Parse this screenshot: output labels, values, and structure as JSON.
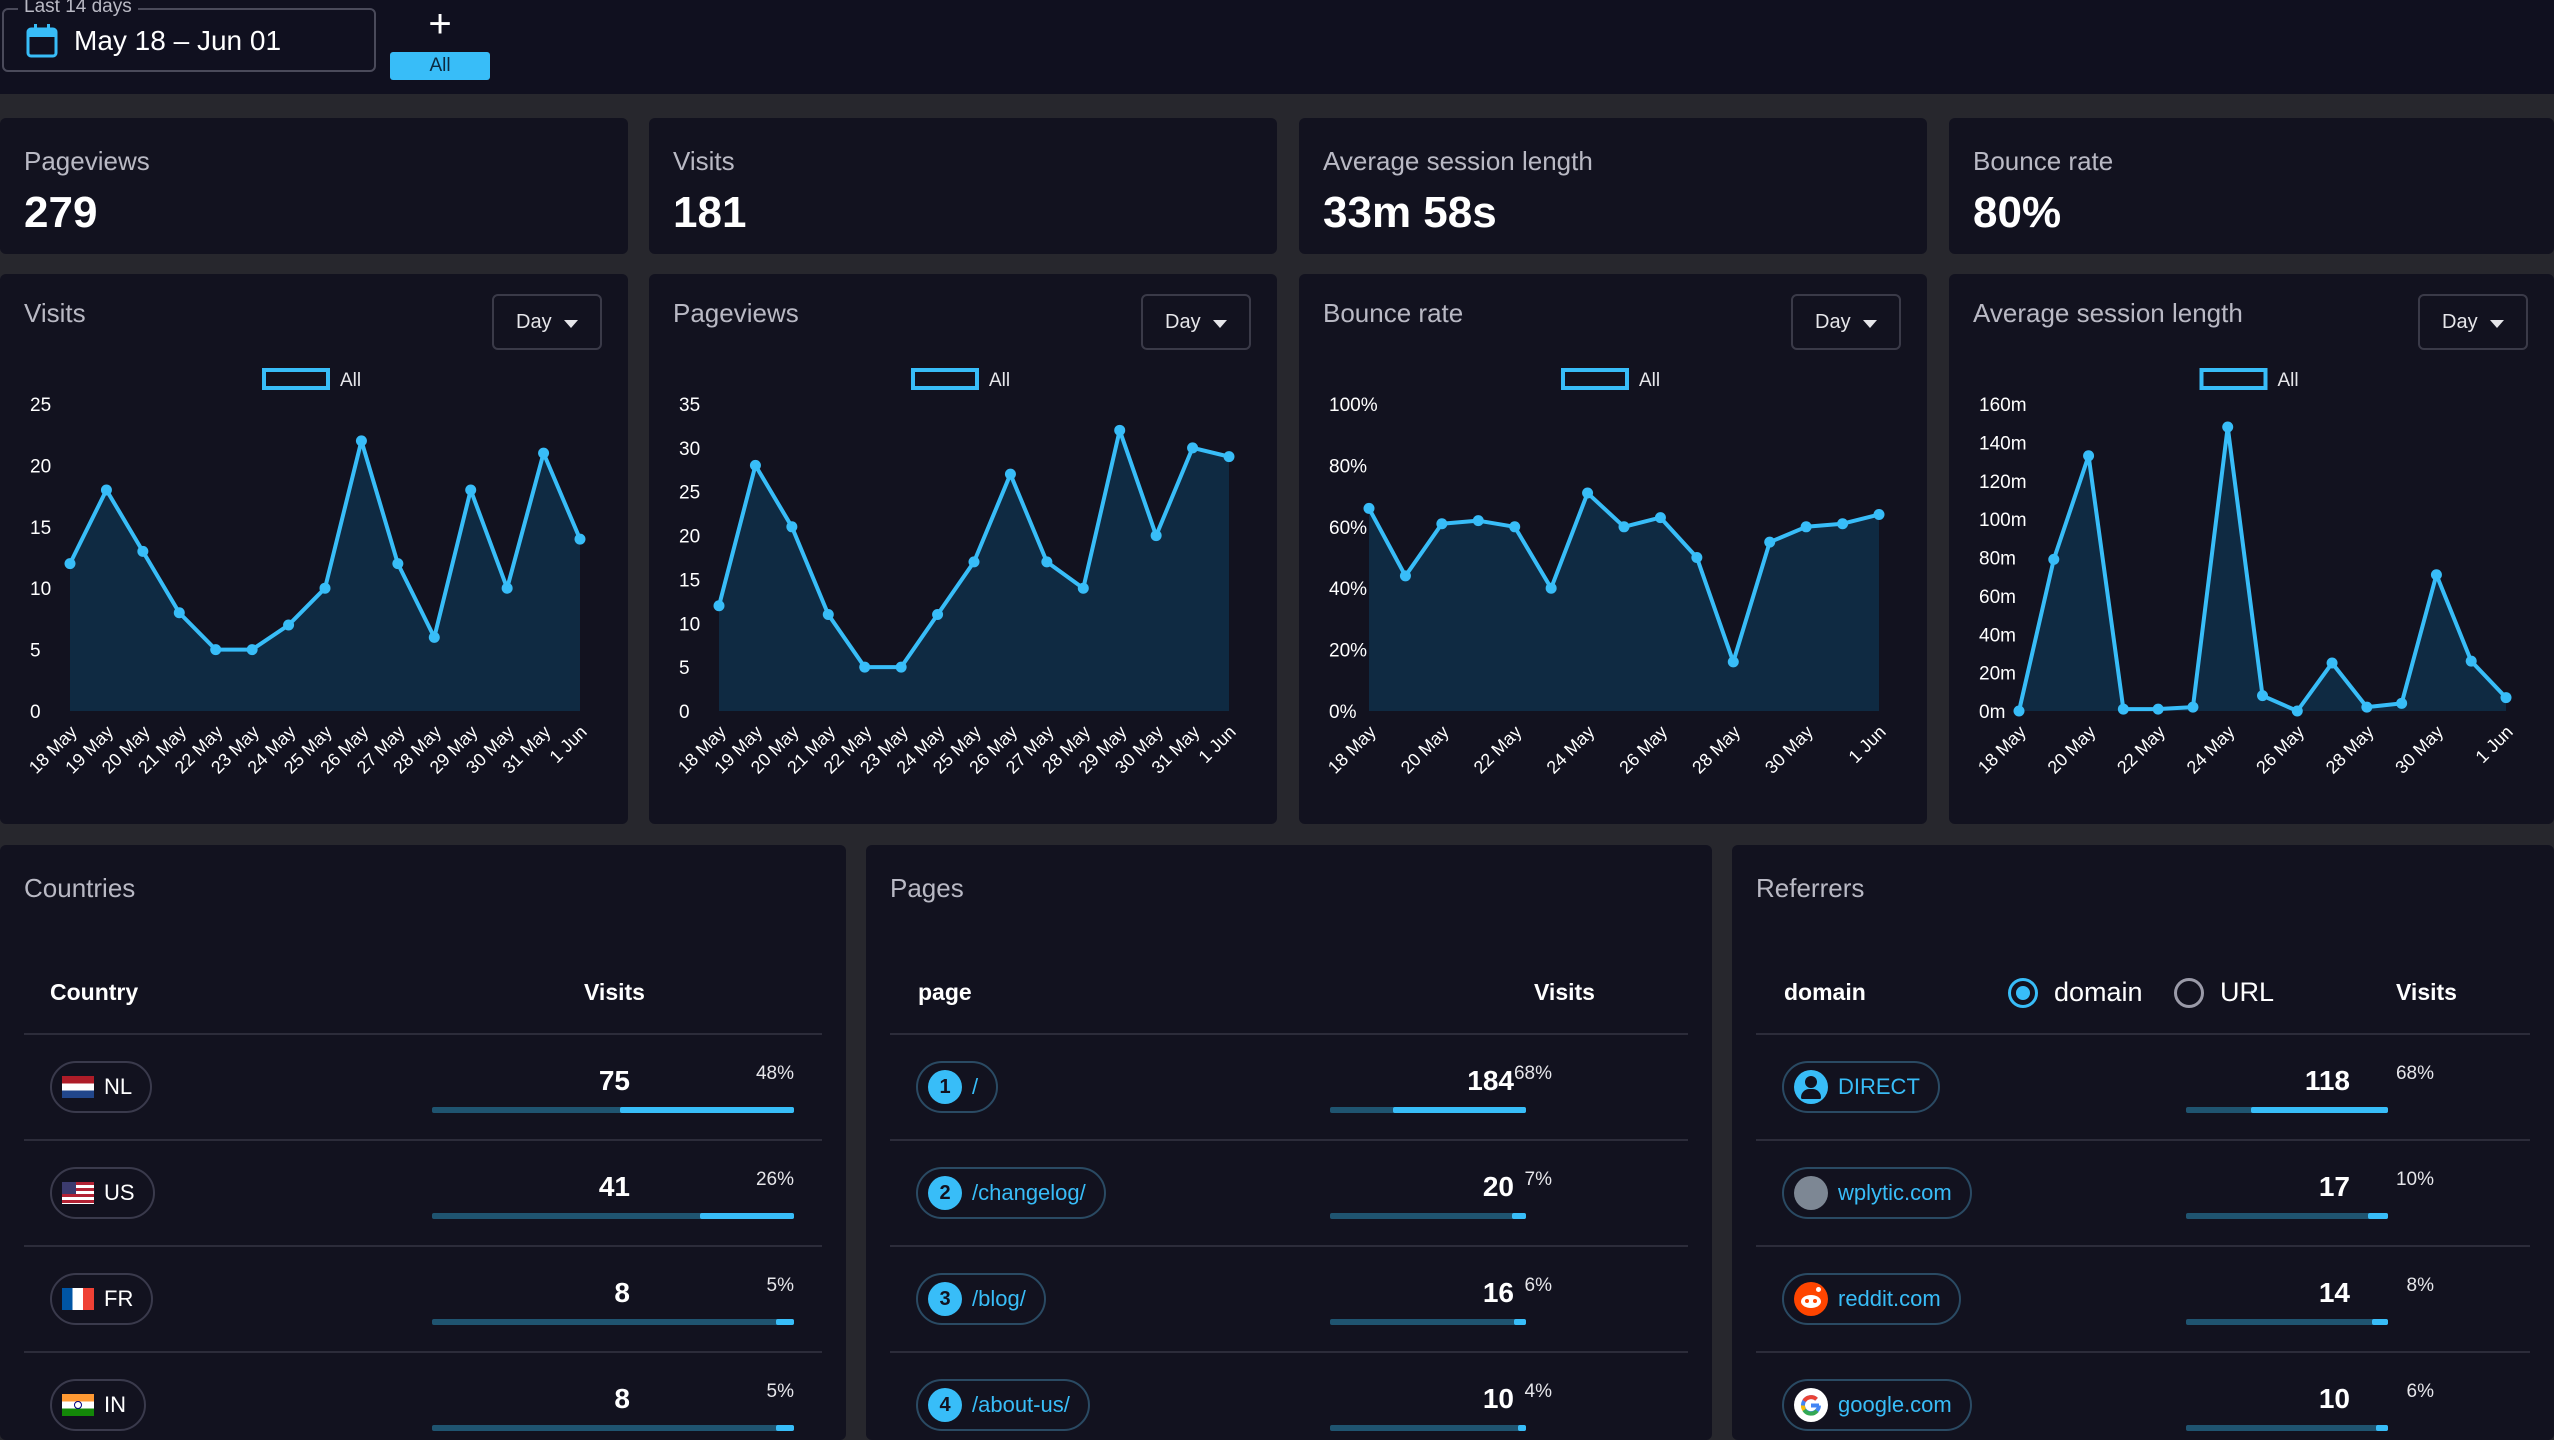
{
  "header": {
    "range_label": "Last 14 days",
    "date_range": "May 18 – Jun 01",
    "add_label": "+",
    "filter_chip": "All"
  },
  "stats": [
    {
      "label": "Pageviews",
      "value": "279"
    },
    {
      "label": "Visits",
      "value": "181"
    },
    {
      "label": "Average session length",
      "value": "33m 58s"
    },
    {
      "label": "Bounce rate",
      "value": "80%"
    }
  ],
  "charts": [
    {
      "title": "Visits",
      "interval": "Day",
      "legend": "All",
      "yticks": [
        "0",
        "5",
        "10",
        "15",
        "20",
        "25"
      ],
      "xlabels": [
        "18 May",
        "19 May",
        "20 May",
        "21 May",
        "22 May",
        "23 May",
        "24 May",
        "25 May",
        "26 May",
        "27 May",
        "28 May",
        "29 May",
        "30 May",
        "31 May",
        "1 Jun"
      ]
    },
    {
      "title": "Pageviews",
      "interval": "Day",
      "legend": "All",
      "yticks": [
        "0",
        "5",
        "10",
        "15",
        "20",
        "25",
        "30",
        "35"
      ],
      "xlabels": [
        "18 May",
        "19 May",
        "20 May",
        "21 May",
        "22 May",
        "23 May",
        "24 May",
        "25 May",
        "26 May",
        "27 May",
        "28 May",
        "29 May",
        "30 May",
        "31 May",
        "1 Jun"
      ]
    },
    {
      "title": "Bounce rate",
      "interval": "Day",
      "legend": "All",
      "yticks": [
        "0%",
        "20%",
        "40%",
        "60%",
        "80%",
        "100%"
      ],
      "xlabels": [
        "18 May",
        "20 May",
        "22 May",
        "24 May",
        "26 May",
        "28 May",
        "30 May",
        "1 Jun"
      ]
    },
    {
      "title": "Average session length",
      "interval": "Day",
      "legend": "All",
      "yticks": [
        "0m",
        "20m",
        "40m",
        "60m",
        "80m",
        "100m",
        "120m",
        "140m",
        "160m"
      ],
      "xlabels": [
        "18 May",
        "20 May",
        "22 May",
        "24 May",
        "26 May",
        "28 May",
        "30 May",
        "1 Jun"
      ]
    }
  ],
  "chart_data": [
    {
      "type": "area",
      "title": "Visits",
      "x": [
        "18 May",
        "19 May",
        "20 May",
        "21 May",
        "22 May",
        "23 May",
        "24 May",
        "25 May",
        "26 May",
        "27 May",
        "28 May",
        "29 May",
        "30 May",
        "31 May",
        "1 Jun"
      ],
      "series": [
        {
          "name": "All",
          "values": [
            12,
            18,
            13,
            8,
            5,
            5,
            7,
            10,
            22,
            12,
            6,
            18,
            10,
            21,
            14
          ]
        }
      ],
      "ylim": [
        0,
        25
      ]
    },
    {
      "type": "area",
      "title": "Pageviews",
      "x": [
        "18 May",
        "19 May",
        "20 May",
        "21 May",
        "22 May",
        "23 May",
        "24 May",
        "25 May",
        "26 May",
        "27 May",
        "28 May",
        "29 May",
        "30 May",
        "31 May",
        "1 Jun"
      ],
      "series": [
        {
          "name": "All",
          "values": [
            12,
            28,
            21,
            11,
            5,
            5,
            11,
            17,
            27,
            17,
            14,
            32,
            20,
            30,
            29
          ]
        }
      ],
      "ylim": [
        0,
        35
      ]
    },
    {
      "type": "area",
      "title": "Bounce rate",
      "x": [
        "18 May",
        "19 May",
        "20 May",
        "21 May",
        "22 May",
        "23 May",
        "24 May",
        "25 May",
        "26 May",
        "27 May",
        "28 May",
        "29 May",
        "30 May",
        "31 May",
        "1 Jun"
      ],
      "series": [
        {
          "name": "All",
          "values": [
            66,
            44,
            61,
            62,
            60,
            40,
            71,
            60,
            63,
            50,
            16,
            55,
            60,
            61,
            64
          ]
        }
      ],
      "ylim": [
        0,
        100
      ],
      "unit": "%"
    },
    {
      "type": "area",
      "title": "Average session length",
      "x": [
        "18 May",
        "19 May",
        "20 May",
        "21 May",
        "22 May",
        "23 May",
        "24 May",
        "25 May",
        "26 May",
        "27 May",
        "28 May",
        "29 May",
        "30 May",
        "31 May",
        "1 Jun"
      ],
      "series": [
        {
          "name": "All",
          "values": [
            0,
            79,
            133,
            1,
            1,
            2,
            148,
            8,
            0,
            25,
            2,
            4,
            71,
            26,
            7
          ]
        }
      ],
      "ylim": [
        0,
        160
      ],
      "unit": "m"
    }
  ],
  "countries": {
    "title": "Countries",
    "col_label": "Country",
    "col_value": "Visits",
    "rows": [
      {
        "code": "NL",
        "value": "75",
        "pct": "48%",
        "fill": 0.48
      },
      {
        "code": "US",
        "value": "41",
        "pct": "26%",
        "fill": 0.26
      },
      {
        "code": "FR",
        "value": "8",
        "pct": "5%",
        "fill": 0.05
      },
      {
        "code": "IN",
        "value": "8",
        "pct": "5%",
        "fill": 0.05
      }
    ]
  },
  "pages": {
    "title": "Pages",
    "col_label": "page",
    "col_value": "Visits",
    "rows": [
      {
        "rank": "1",
        "path": "/",
        "value": "184",
        "pct": "68%",
        "fill": 0.68
      },
      {
        "rank": "2",
        "path": "/changelog/",
        "value": "20",
        "pct": "7%",
        "fill": 0.07
      },
      {
        "rank": "3",
        "path": "/blog/",
        "value": "16",
        "pct": "6%",
        "fill": 0.06
      },
      {
        "rank": "4",
        "path": "/about-us/",
        "value": "10",
        "pct": "4%",
        "fill": 0.04
      }
    ]
  },
  "referrers": {
    "title": "Referrers",
    "col_label": "domain",
    "col_value": "Visits",
    "option_domain": "domain",
    "option_url": "URL",
    "rows": [
      {
        "domain": "DIRECT",
        "icon": "user-icon",
        "value": "118",
        "pct": "68%",
        "fill": 0.68
      },
      {
        "domain": "wplytic.com",
        "icon": "site-icon",
        "value": "17",
        "pct": "10%",
        "fill": 0.1
      },
      {
        "domain": "reddit.com",
        "icon": "reddit-icon",
        "value": "14",
        "pct": "8%",
        "fill": 0.08
      },
      {
        "domain": "google.com",
        "icon": "google-icon",
        "value": "10",
        "pct": "6%",
        "fill": 0.06
      }
    ]
  },
  "colors": {
    "accent": "#38bdf8",
    "card": "#12121f",
    "fill": "#0f2a42"
  }
}
